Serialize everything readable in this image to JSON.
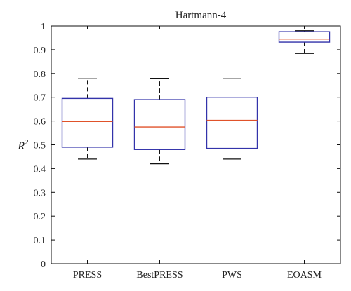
{
  "chart_data": {
    "type": "boxplot",
    "title": "Hartmann-4",
    "ylabel": "R",
    "ylabel_superscript": "2",
    "xlabel": "",
    "ylim": [
      0,
      1
    ],
    "yticks": [
      0,
      0.1,
      0.2,
      0.3,
      0.4,
      0.5,
      0.6,
      0.7,
      0.8,
      0.9,
      1
    ],
    "ytick_labels": [
      "0",
      "0.1",
      "0.2",
      "0.3",
      "0.4",
      "0.5",
      "0.6",
      "0.7",
      "0.8",
      "0.9",
      "1"
    ],
    "grid": false,
    "categories": [
      "PRESS",
      "BestPRESS",
      "PWS",
      "EOASM"
    ],
    "boxes": [
      {
        "name": "PRESS",
        "whisker_low": 0.44,
        "q1": 0.49,
        "median": 0.598,
        "q3": 0.695,
        "whisker_high": 0.778
      },
      {
        "name": "BestPRESS",
        "whisker_low": 0.42,
        "q1": 0.48,
        "median": 0.575,
        "q3": 0.69,
        "whisker_high": 0.78
      },
      {
        "name": "PWS",
        "whisker_low": 0.44,
        "q1": 0.485,
        "median": 0.603,
        "q3": 0.7,
        "whisker_high": 0.778
      },
      {
        "name": "EOASM",
        "whisker_low": 0.884,
        "q1": 0.932,
        "median": 0.945,
        "q3": 0.976,
        "whisker_high": 0.98
      }
    ],
    "colors": {
      "box": "#3333aa",
      "median": "#e0522a",
      "whisker": "#111111",
      "axis": "#111111"
    }
  }
}
